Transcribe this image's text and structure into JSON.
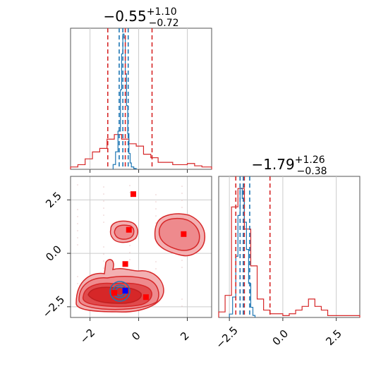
{
  "chart_data": [
    {
      "type": "histogram",
      "panel": "x-marginal",
      "title": "−0.55",
      "title_sup": "+1.10",
      "title_sub": "−0.72",
      "xlim": [
        -2.8,
        3.0
      ],
      "xticks": [
        -2,
        0,
        2
      ],
      "grid": true,
      "series": [
        {
          "color": "#d62728",
          "bins": [
            -2.8,
            -2.5,
            -2.2,
            -1.9,
            -1.6,
            -1.3,
            -1.0,
            -0.7,
            -0.4,
            -0.1,
            0.2,
            0.5,
            0.8,
            1.1,
            1.4,
            1.7,
            2.0,
            2.3,
            2.6,
            3.0
          ],
          "counts": [
            2,
            4,
            9,
            15,
            18,
            26,
            30,
            26,
            22,
            20,
            13,
            10,
            6,
            6,
            4,
            4,
            5,
            3,
            2
          ],
          "quantiles": [
            -1.27,
            -0.55,
            0.55
          ]
        },
        {
          "color": "#1f77b4",
          "bins": [
            -1.05,
            -0.95,
            -0.85,
            -0.75,
            -0.7,
            -0.65,
            -0.6,
            -0.55,
            -0.5,
            -0.45,
            -0.4,
            -0.35,
            -0.3,
            -0.2,
            -0.1
          ],
          "counts": [
            6,
            22,
            48,
            100,
            145,
            170,
            165,
            120,
            80,
            45,
            20,
            8,
            3,
            1
          ],
          "quantiles": [
            -0.8,
            -0.65,
            -0.43
          ]
        }
      ]
    },
    {
      "type": "contour",
      "panel": "joint",
      "xlim": [
        -2.8,
        3.0
      ],
      "ylim": [
        -3.0,
        3.6
      ],
      "xticks": [
        "−2",
        "0",
        "2"
      ],
      "yticks": [
        "−2.5",
        "0.0",
        "2.5"
      ],
      "grid": true,
      "red_points": [
        [
          -0.22,
          2.77
        ],
        [
          -0.4,
          1.1
        ],
        [
          1.85,
          0.9
        ],
        [
          -0.55,
          -0.5
        ],
        [
          -1.0,
          -1.85
        ],
        [
          0.3,
          -2.05
        ]
      ],
      "blue_point": [
        -0.55,
        -1.75
      ],
      "colors": {
        "red": "#d62728",
        "red_fill_light": "#f0969a",
        "red_fill_dark": "#d62728",
        "blue": "#1f77b4",
        "blue_marker": "#0000ff"
      }
    },
    {
      "type": "histogram",
      "panel": "y-marginal",
      "title": "−1.79",
      "title_sup": "+1.26",
      "title_sub": "−0.38",
      "xlim": [
        -3.0,
        3.6
      ],
      "xticks": [
        "−2.5",
        "0.0",
        "2.5"
      ],
      "grid": true,
      "series": [
        {
          "color": "#d62728",
          "bins": [
            -3.0,
            -2.7,
            -2.4,
            -2.1,
            -1.8,
            -1.5,
            -1.2,
            -0.9,
            -0.6,
            -0.3,
            0.0,
            0.3,
            0.6,
            0.9,
            1.2,
            1.5,
            1.8,
            2.1,
            2.4,
            2.7,
            3.0,
            3.6
          ],
          "counts": [
            3,
            12,
            60,
            70,
            48,
            28,
            10,
            4,
            2,
            2,
            1,
            2,
            4,
            6,
            10,
            6,
            4,
            1,
            1,
            1,
            1
          ],
          "quantiles": [
            -2.2,
            -1.8,
            -0.6
          ]
        },
        {
          "color": "#1f77b4",
          "bins": [
            -2.5,
            -2.35,
            -2.2,
            -2.1,
            -2.0,
            -1.9,
            -1.8,
            -1.7,
            -1.6,
            -1.5,
            -1.4,
            -1.3
          ],
          "counts": [
            5,
            30,
            90,
            150,
            190,
            175,
            140,
            100,
            50,
            15,
            3
          ],
          "quantiles": [
            -2.0,
            -1.85,
            -1.55
          ]
        }
      ]
    }
  ]
}
